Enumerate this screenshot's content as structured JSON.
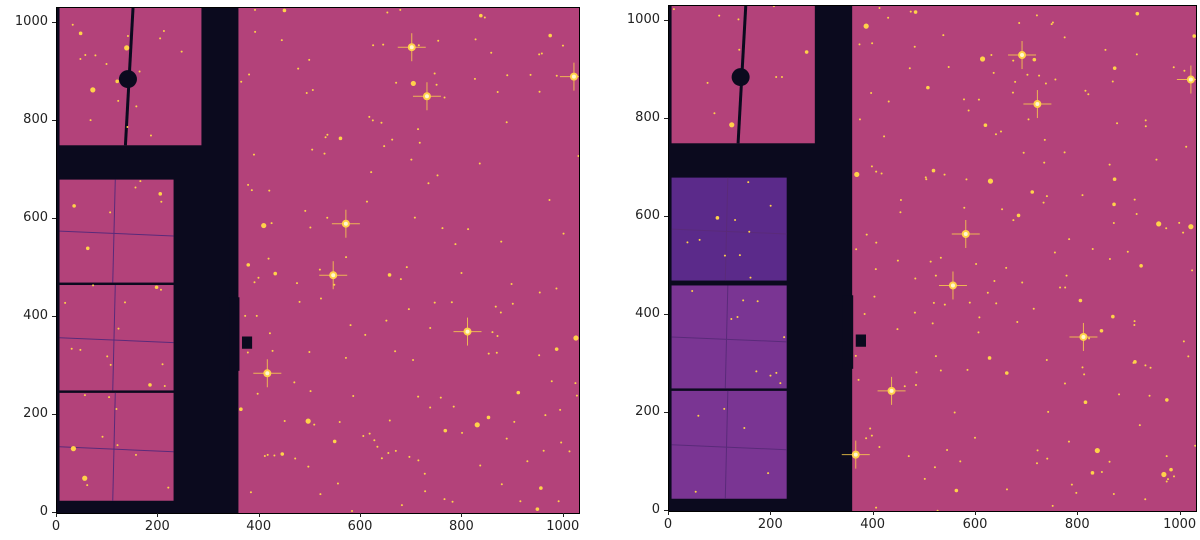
{
  "panels": [
    {
      "name": "left-panel",
      "y_ticks": [
        "0",
        "200",
        "400",
        "600",
        "800",
        "1000"
      ],
      "x_ticks": [
        "0",
        "200",
        "400",
        "600",
        "800",
        "1000"
      ]
    },
    {
      "name": "right-panel",
      "y_ticks": [
        "0",
        "200",
        "400",
        "600",
        "800",
        "1000"
      ],
      "x_ticks": [
        "0",
        "200",
        "400",
        "600",
        "800",
        "1000"
      ]
    }
  ],
  "colors": {
    "background_field": "#b3427a",
    "blank_region": "#0b0a1e",
    "star": "#ffd24a",
    "star_core": "#fff6d0",
    "dim_chip": "#5b2a8a",
    "mid_chip": "#7a3593"
  },
  "axis_range": {
    "x": [
      0,
      1030
    ],
    "y": [
      0,
      1030
    ]
  }
}
